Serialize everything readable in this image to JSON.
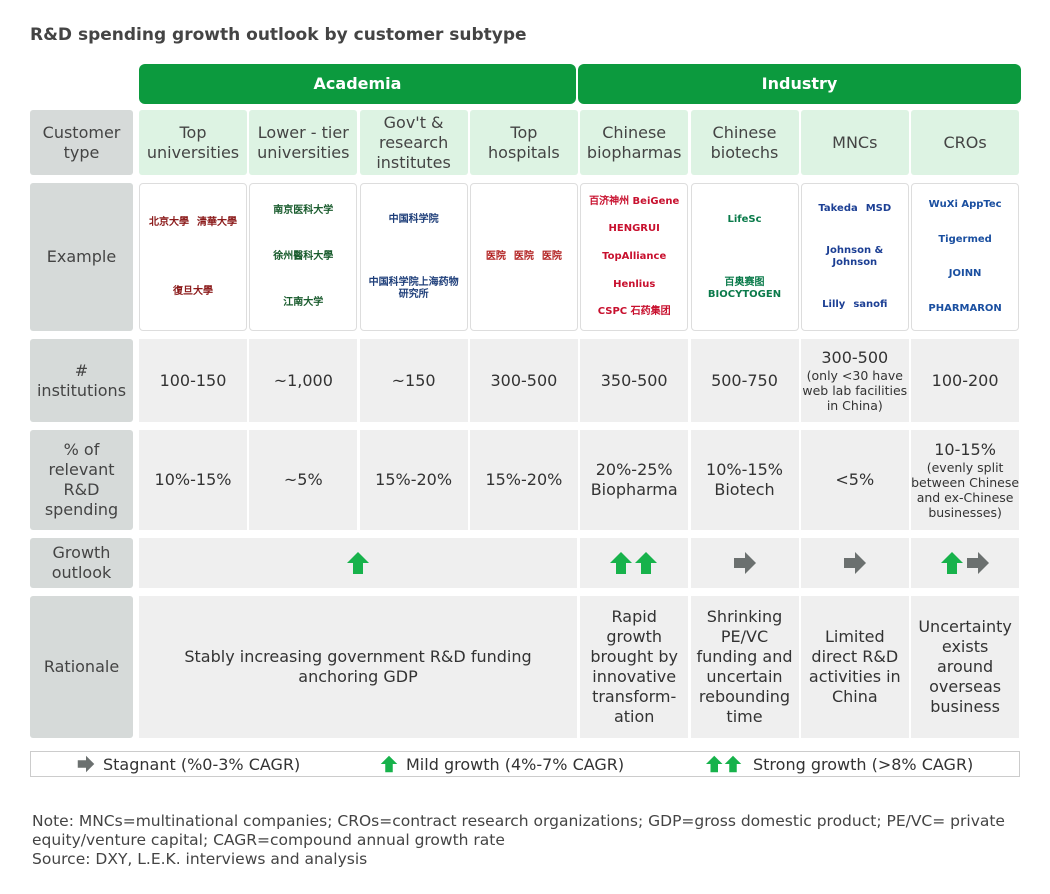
{
  "title": "R&D spending growth outlook by customer subtype",
  "groups": [
    "Academia",
    "Industry"
  ],
  "row_labels": [
    "Customer type",
    "Example",
    "# institutions",
    "% of relevant R&D spending",
    "Growth outlook",
    "Rationale"
  ],
  "columns": [
    {
      "subtype": "Top universities",
      "logos": [
        "北京大學",
        "清華大學",
        "復旦大學"
      ],
      "institutions": "100-150",
      "spending": "10%-15%"
    },
    {
      "subtype": "Lower - tier universities",
      "logos": [
        "南京医科大学",
        "徐州醫科大學",
        "江南大学"
      ],
      "institutions": "~1,000",
      "spending": "~5%"
    },
    {
      "subtype": "Gov't & research institutes",
      "logos": [
        "中国科学院",
        "中国科学院上海药物研究所"
      ],
      "institutions": "~150",
      "spending": "15%-20%"
    },
    {
      "subtype": "Top hospitals",
      "logos": [
        "医院",
        "医院",
        "医院"
      ],
      "institutions": "300-500",
      "spending": "15%-20%"
    },
    {
      "subtype": "Chinese biopharmas",
      "logos": [
        "百济神州 BeiGene",
        "HENGRUI",
        "TopAlliance",
        "Henlius",
        "CSPC 石药集团"
      ],
      "institutions": "350-500",
      "spending": "20%-25%",
      "spending_sub": "Biopharma"
    },
    {
      "subtype": "Chinese biotechs",
      "logos": [
        "LifeSc",
        "百奥赛图 BIOCYTOGEN"
      ],
      "institutions": "500-750",
      "spending": "10%-15%",
      "spending_sub": "Biotech"
    },
    {
      "subtype": "MNCs",
      "logos": [
        "Takeda",
        "MSD",
        "Johnson & Johnson",
        "Lilly",
        "sanofi"
      ],
      "institutions": "300-500",
      "institutions_note": "(only <30 have web lab facilities in China)",
      "spending": "<5%"
    },
    {
      "subtype": "CROs",
      "logos": [
        "WuXi AppTec",
        "Tigermed",
        "JOINN",
        "PHARMARON"
      ],
      "institutions": "100-200",
      "spending": "10-15%",
      "spending_note": "(evenly split between Chinese and ex-Chinese businesses)"
    }
  ],
  "growth": {
    "academia": [
      "mild"
    ],
    "industry": [
      [
        "strong"
      ],
      [
        "stagnant"
      ],
      [
        "stagnant"
      ],
      [
        "mild",
        "stagnant"
      ]
    ]
  },
  "rationale": {
    "academia": "Stably increasing government R&D funding anchoring GDP",
    "industry": [
      "Rapid growth brought by innovative transform-ation",
      "Shrinking PE/VC funding and uncertain rebounding time",
      "Limited direct R&D activities in China",
      "Uncertainty exists around overseas business"
    ]
  },
  "legend": [
    {
      "key": "stagnant",
      "label": "Stagnant (%0-3% CAGR)"
    },
    {
      "key": "mild",
      "label": "Mild growth (4%-7% CAGR)"
    },
    {
      "key": "strong",
      "label": "Strong growth (>8% CAGR)"
    }
  ],
  "notes": [
    "Note: MNCs=multinational companies; CROs=contract research organizations; GDP=gross domestic product; PE/VC= private equity/venture capital; CAGR=compound annual growth rate",
    "Source:  DXY, L.E.K. interviews and analysis"
  ]
}
